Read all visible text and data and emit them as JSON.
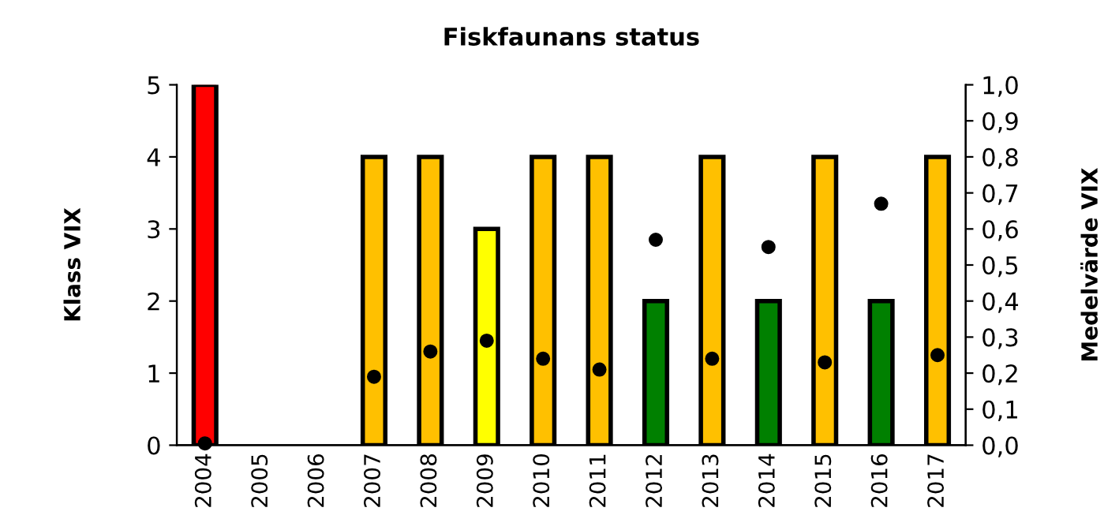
{
  "chart_data": {
    "type": "bar",
    "title": "Fiskfaunans status",
    "ylabel": "Klass VIX",
    "y2label": "Medelvärde VIX",
    "categories": [
      "2004",
      "2005",
      "2006",
      "2007",
      "2008",
      "2009",
      "2010",
      "2011",
      "2012",
      "2013",
      "2014",
      "2015",
      "2016",
      "2017"
    ],
    "series": [
      {
        "values": [
          5,
          null,
          null,
          4,
          4,
          3,
          4,
          4,
          2,
          4,
          2,
          4,
          2,
          4
        ],
        "colors": [
          "#ff0000",
          null,
          null,
          "#ffc000",
          "#ffc000",
          "#ffff00",
          "#ffc000",
          "#ffc000",
          "#008000",
          "#ffc000",
          "#008000",
          "#ffc000",
          "#008000",
          "#ffc000"
        ]
      },
      {
        "type": "scatter",
        "axis": "y2",
        "color": "#000000",
        "marker": "circle",
        "values": [
          0.005,
          null,
          null,
          0.19,
          0.26,
          0.29,
          0.24,
          0.21,
          0.57,
          0.24,
          0.55,
          0.23,
          0.67,
          0.25
        ]
      }
    ],
    "ylim": [
      0,
      5
    ],
    "yticks": [
      0,
      1,
      2,
      3,
      4,
      5
    ],
    "y2lim": [
      0,
      1
    ],
    "y2ticks": [
      {
        "value": 0,
        "label": "0,0"
      },
      {
        "value": 0.1,
        "label": "0,1"
      },
      {
        "value": 0.2,
        "label": "0,2"
      },
      {
        "value": 0.3,
        "label": "0,3"
      },
      {
        "value": 0.4,
        "label": "0,4"
      },
      {
        "value": 0.5,
        "label": "0,5"
      },
      {
        "value": 0.6,
        "label": "0,6"
      },
      {
        "value": 0.7,
        "label": "0,7"
      },
      {
        "value": 0.8,
        "label": "0,8"
      },
      {
        "value": 0.9,
        "label": "0,9"
      },
      {
        "value": 1,
        "label": "1,0"
      }
    ],
    "grid": false,
    "legend": false
  }
}
